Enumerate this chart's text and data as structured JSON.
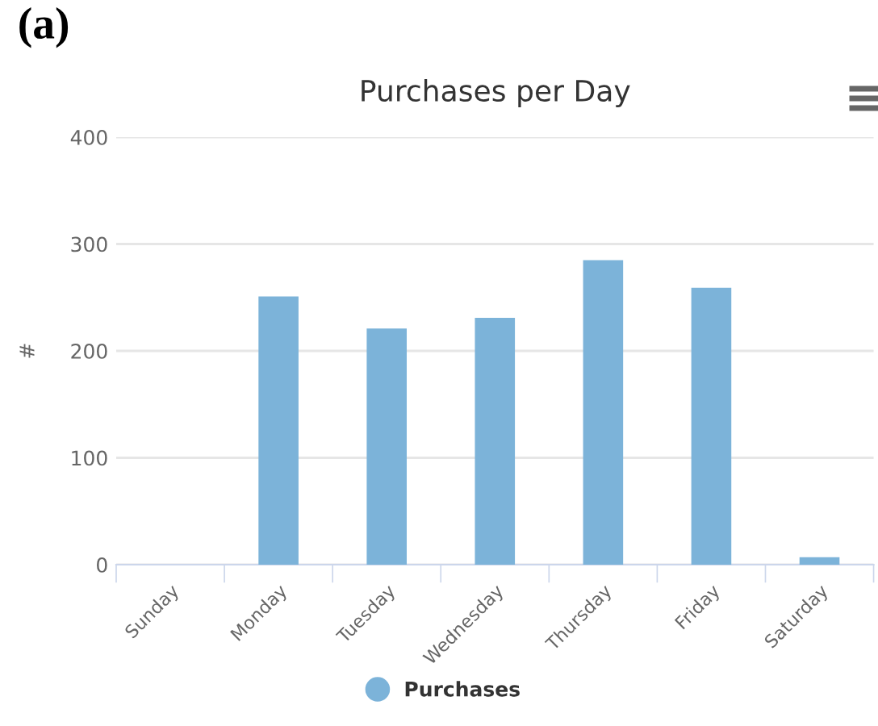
{
  "chart_data": {
    "type": "bar",
    "title": "Purchases per Day",
    "ylabel": "#",
    "annotations": [
      "(a)"
    ],
    "categories": [
      "Sunday",
      "Monday",
      "Tuesday",
      "Wednesday",
      "Thursday",
      "Friday",
      "Saturday"
    ],
    "series": [
      {
        "name": "Purchases",
        "color": "#7cb3d9",
        "values": [
          0,
          251,
          221,
          231,
          285,
          259,
          7
        ]
      }
    ],
    "ylim": [
      0,
      400
    ],
    "yticks": [
      0,
      100,
      200,
      300,
      400
    ],
    "grid": "y",
    "legend": "bottom"
  }
}
